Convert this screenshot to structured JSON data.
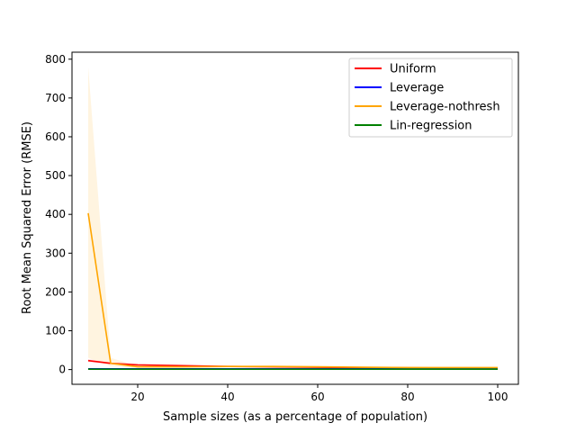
{
  "chart_data": {
    "type": "line",
    "title": "",
    "xlabel": "Sample sizes (as a percentage of population)",
    "ylabel": "Root Mean Squared Error (RMSE)",
    "xlim": [
      5.4,
      104.6
    ],
    "ylim": [
      -38,
      818
    ],
    "xticks": [
      20,
      40,
      60,
      80,
      100
    ],
    "yticks": [
      0,
      100,
      200,
      300,
      400,
      500,
      600,
      700,
      800
    ],
    "grid": false,
    "legend_position": "top-right",
    "series": [
      {
        "name": "Uniform",
        "color": "#ff0000",
        "x": [
          9,
          14,
          20,
          30,
          40,
          50,
          60,
          70,
          80,
          90,
          100
        ],
        "y": [
          23,
          16,
          12,
          10,
          8,
          7,
          6,
          5,
          4.5,
          4,
          3.5
        ],
        "band_lower": [
          19,
          14,
          11,
          9,
          7,
          6,
          5.5,
          4.5,
          4,
          3.5,
          3
        ],
        "band_upper": [
          27,
          18,
          13,
          11,
          9,
          8,
          7,
          6,
          5,
          4.5,
          4
        ]
      },
      {
        "name": "Leverage",
        "color": "#0000ff",
        "x": [
          9,
          14,
          20,
          30,
          40,
          50,
          60,
          70,
          80,
          90,
          100
        ],
        "y": [
          2,
          2,
          2,
          2,
          2,
          2,
          2,
          2,
          2,
          2,
          2
        ]
      },
      {
        "name": "Leverage-nothresh",
        "color": "#ffa500",
        "x": [
          9,
          14,
          20,
          30,
          40,
          50,
          60,
          70,
          80,
          90,
          100
        ],
        "y": [
          403,
          16,
          7,
          7,
          8,
          8,
          7,
          6,
          5,
          5,
          5
        ],
        "band_lower": [
          30,
          8,
          5,
          5,
          6,
          6,
          5,
          4.5,
          4,
          4,
          4
        ],
        "band_upper": [
          780,
          30,
          10,
          9,
          10,
          10,
          9,
          8,
          7,
          6,
          6
        ]
      },
      {
        "name": "Lin-regression",
        "color": "#008000",
        "x": [
          9,
          14,
          20,
          30,
          40,
          50,
          60,
          70,
          80,
          90,
          100
        ],
        "y": [
          1,
          1,
          1,
          1,
          1,
          1,
          1,
          1,
          1,
          1,
          1
        ]
      }
    ]
  }
}
